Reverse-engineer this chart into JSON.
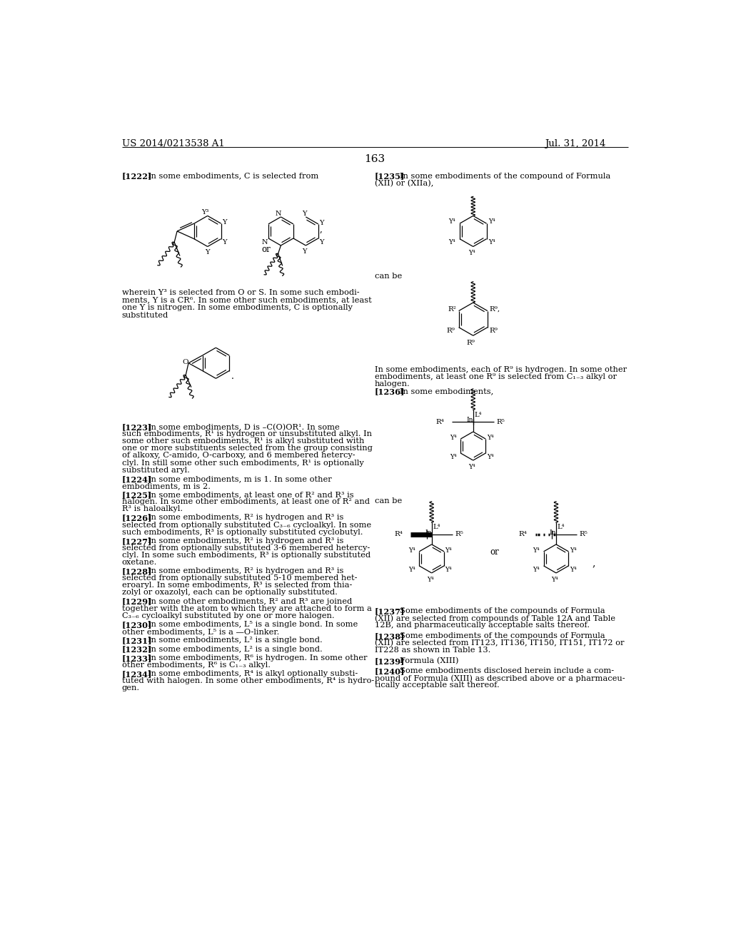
{
  "page_number": "163",
  "patent_number": "US 2014/0213538 A1",
  "patent_date": "Jul. 31, 2014",
  "background_color": "#ffffff"
}
